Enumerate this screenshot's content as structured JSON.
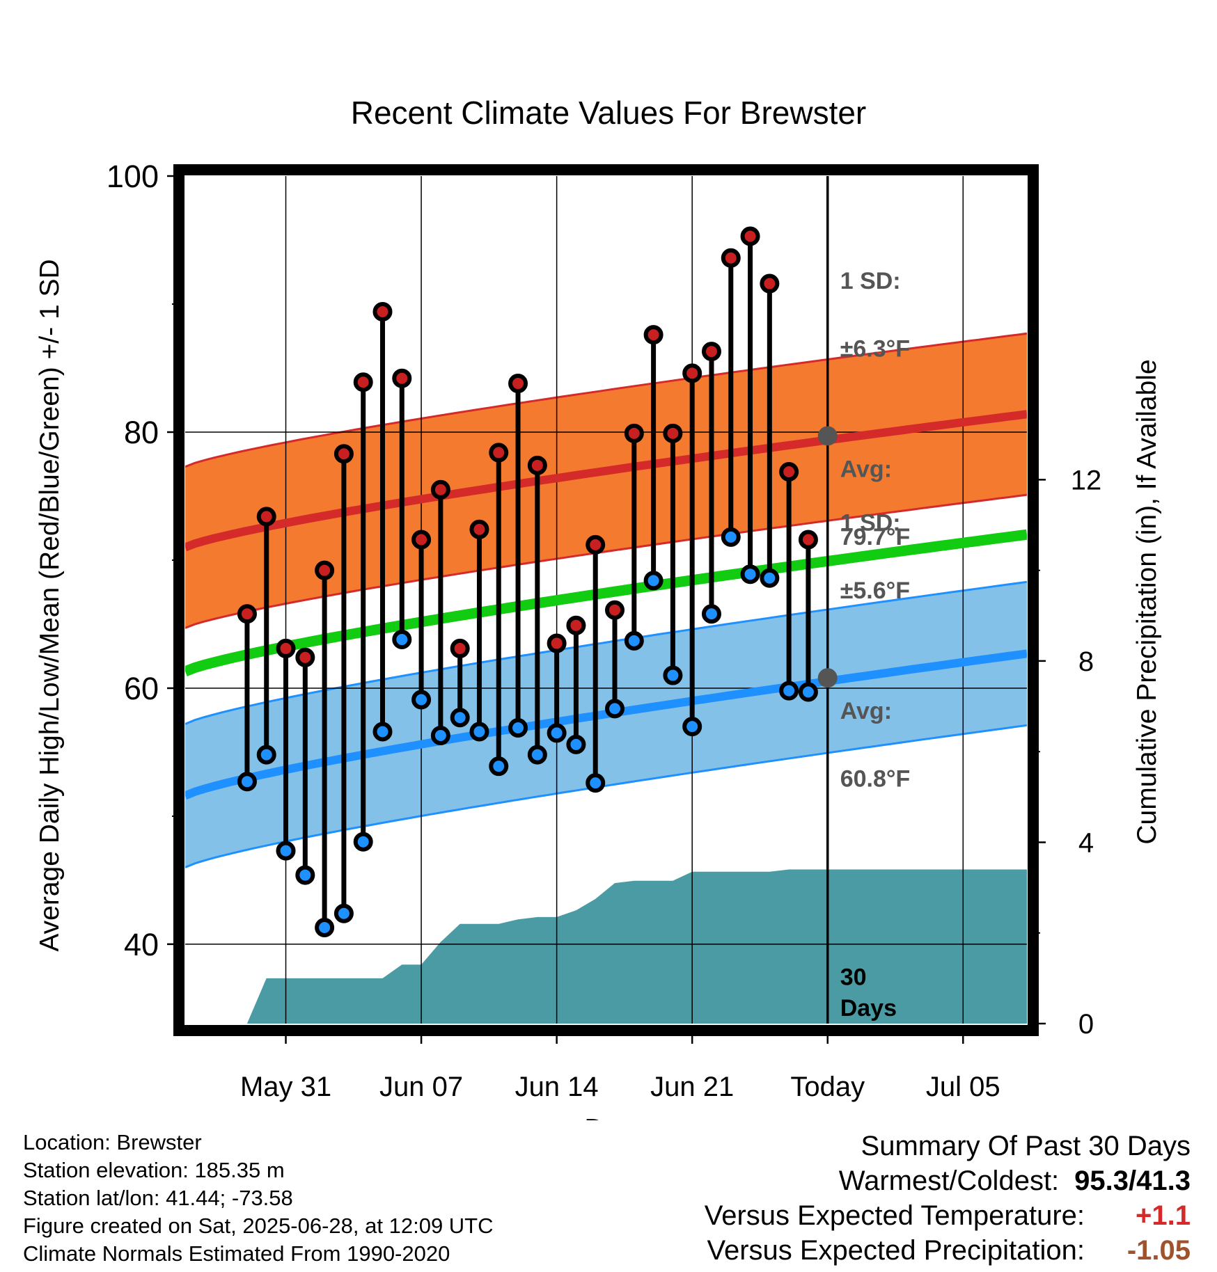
{
  "chart_data": {
    "type": "line",
    "title": "Recent Climate Values For Brewster",
    "xlabel": "Day",
    "ylabel": "Average Daily High/Low/Mean (Red/Blue/Green) +/- 1 SD",
    "y2label": "Cumulative Precipitation (in), If Available",
    "ylim": [
      33.8,
      100
    ],
    "y2lim": [
      0,
      18.7
    ],
    "yticks": [
      "40",
      "60",
      "80",
      "100"
    ],
    "y2ticks": [
      "0",
      "4",
      "8",
      "12"
    ],
    "x_day_range": [
      -33.2,
      10.3
    ],
    "xticks": [
      {
        "day": -28,
        "label": "May 31"
      },
      {
        "day": -21,
        "label": "Jun 07"
      },
      {
        "day": -14,
        "label": "Jun 14"
      },
      {
        "day": -7,
        "label": "Jun 21"
      },
      {
        "day": 0,
        "label": "Today"
      },
      {
        "day": 7,
        "label": "Jul 05"
      }
    ],
    "daily_highs": [
      65.8,
      73.4,
      63.1,
      62.4,
      69.2,
      78.3,
      83.9,
      89.4,
      84.2,
      71.6,
      75.5,
      63.1,
      72.4,
      78.4,
      83.8,
      77.4,
      63.5,
      64.9,
      71.2,
      66.1,
      79.9,
      87.6,
      79.9,
      84.6,
      86.3,
      93.6,
      95.3,
      91.6,
      76.9,
      71.6
    ],
    "daily_lows": [
      52.7,
      54.8,
      47.3,
      45.4,
      41.3,
      42.4,
      48.0,
      56.6,
      63.8,
      59.1,
      56.3,
      57.7,
      56.6,
      53.9,
      56.9,
      54.8,
      56.5,
      55.6,
      52.6,
      58.4,
      63.7,
      68.4,
      61.0,
      57.0,
      65.8,
      71.8,
      68.9,
      68.6,
      59.8,
      59.7
    ],
    "normal_high_start": 71.0,
    "normal_high_end": 81.4,
    "normal_low_start": 51.6,
    "normal_low_end": 62.7,
    "normal_mean_start": 61.3,
    "normal_mean_end": 72.0,
    "sd_high": 6.3,
    "sd_low": 5.6,
    "avg_high": 79.7,
    "avg_low": 60.8,
    "precip_cumulative": [
      0,
      1.0,
      1.0,
      1.0,
      1.0,
      1.0,
      1.0,
      1.0,
      1.3,
      1.3,
      1.8,
      2.2,
      2.2,
      2.2,
      2.3,
      2.35,
      2.35,
      2.5,
      2.75,
      3.1,
      3.15,
      3.15,
      3.15,
      3.35,
      3.35,
      3.35,
      3.35,
      3.35,
      3.4,
      3.4
    ],
    "precip_total": 3.4,
    "labels": {
      "high_sd": "1 SD:",
      "high_sd_val": "±6.3°F",
      "high_avg": "Avg:",
      "high_avg_val": "79.7°F",
      "low_sd": "1 SD:",
      "low_sd_val": "±5.6°F",
      "low_avg": "Avg:",
      "low_avg_val": "60.8°F",
      "days_num": "30",
      "days_word": "Days"
    },
    "colors": {
      "high": "#d42a2a",
      "high_band": "#f47a2f",
      "low": "#1e90ff",
      "low_band": "#84c1e8",
      "mean": "#11cc11",
      "precip": "#4a9ba3",
      "marker_high_fill": "#c82020",
      "marker_low_fill": "#1e90ff",
      "annotation": "#555555"
    }
  },
  "info": {
    "location": "Location: Brewster",
    "elevation": "Station elevation: 185.35 m",
    "latlon": "Station lat/lon: 41.44; -73.58",
    "created": "Figure created on Sat, 2025-06-28, at 12:09 UTC",
    "normals": "Climate Normals Estimated From 1990-2020"
  },
  "summary": {
    "title": "Summary Of Past 30 Days",
    "warm_label": "Warmest/Coldest:",
    "warm_value": "95.3/41.3",
    "temp_label": "Versus Expected Temperature:",
    "temp_value": "+1.1",
    "temp_color": "#d42a2a",
    "precip_label": "Versus Expected Precipitation:",
    "precip_value": "-1.05",
    "precip_color": "#a0522d"
  }
}
